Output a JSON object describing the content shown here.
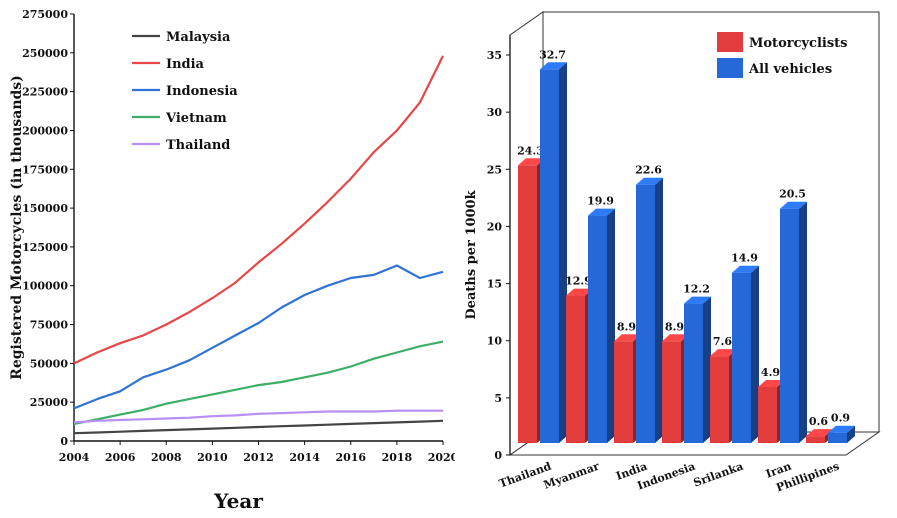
{
  "chart_data": [
    {
      "type": "line",
      "title": "",
      "xlabel": "Year",
      "ylabel": "Registered Motorcycles (in thousands)",
      "xlim": [
        2004,
        2020
      ],
      "ylim": [
        0,
        275000
      ],
      "x_ticks": [
        "2004",
        "2006",
        "2008",
        "2010",
        "2012",
        "2014",
        "2016",
        "2018",
        "2020"
      ],
      "y_ticks": [
        "0",
        "25000",
        "50000",
        "75000",
        "100000",
        "125000",
        "150000",
        "175000",
        "200000",
        "225000",
        "250000",
        "275000"
      ],
      "grid": false,
      "legend_position": "top-left",
      "series": [
        {
          "name": "Malaysia",
          "color": "#444444",
          "x": [
            2004,
            2005,
            2006,
            2007,
            2008,
            2009,
            2010,
            2011,
            2012,
            2013,
            2014,
            2015,
            2016,
            2017,
            2018,
            2019,
            2020
          ],
          "values": [
            5000,
            5500,
            6000,
            6500,
            7000,
            7500,
            8000,
            8500,
            9000,
            9500,
            10000,
            10500,
            11000,
            11500,
            12000,
            12500,
            13000
          ]
        },
        {
          "name": "India",
          "color": "#e8474a",
          "x": [
            2004,
            2005,
            2006,
            2007,
            2008,
            2009,
            2010,
            2011,
            2012,
            2013,
            2014,
            2015,
            2016,
            2017,
            2018,
            2019,
            2020
          ],
          "values": [
            50000,
            57000,
            63000,
            68000,
            75000,
            83000,
            92000,
            102000,
            115000,
            127000,
            140000,
            154000,
            169000,
            186000,
            200000,
            218000,
            248000
          ]
        },
        {
          "name": "Indonesia",
          "color": "#2f73d6",
          "x": [
            2004,
            2005,
            2006,
            2007,
            2008,
            2009,
            2010,
            2011,
            2012,
            2013,
            2014,
            2015,
            2016,
            2017,
            2018,
            2019,
            2020
          ],
          "values": [
            21000,
            27000,
            32000,
            41000,
            46000,
            52000,
            60000,
            68000,
            76000,
            86000,
            94000,
            100000,
            105000,
            107000,
            113000,
            105000,
            109000
          ]
        },
        {
          "name": "Vietnam",
          "color": "#3dae65",
          "x": [
            2004,
            2005,
            2006,
            2007,
            2008,
            2009,
            2010,
            2011,
            2012,
            2013,
            2014,
            2015,
            2016,
            2017,
            2018,
            2019,
            2020
          ],
          "values": [
            11000,
            14000,
            17000,
            20000,
            24000,
            27000,
            30000,
            33000,
            36000,
            38000,
            41000,
            44000,
            48000,
            53000,
            57000,
            61000,
            64000
          ]
        },
        {
          "name": "Thailand",
          "color": "#b98ef2",
          "x": [
            2004,
            2005,
            2006,
            2007,
            2008,
            2009,
            2010,
            2011,
            2012,
            2013,
            2014,
            2015,
            2016,
            2017,
            2018,
            2019,
            2020
          ],
          "values": [
            12000,
            13000,
            13500,
            14000,
            14500,
            15000,
            16000,
            16500,
            17500,
            18000,
            18500,
            19000,
            19000,
            19000,
            19500,
            19500,
            19500
          ]
        }
      ]
    },
    {
      "type": "bar",
      "title": "",
      "xlabel": "",
      "ylabel": "Deaths per 1000k",
      "ylim": [
        0,
        35
      ],
      "y_ticks": [
        "0",
        "5",
        "10",
        "15",
        "20",
        "25",
        "30",
        "35"
      ],
      "grid": false,
      "legend_position": "top-right",
      "categories": [
        "Thailand",
        "Myanmar",
        "India",
        "Indonesia",
        "Srilanka",
        "Iran",
        "Phillipines"
      ],
      "series": [
        {
          "name": "Motorcyclists",
          "color": "#e23c3c",
          "values": [
            24.3,
            12.9,
            8.9,
            8.9,
            7.6,
            4.9,
            0.6
          ],
          "labels": [
            "24.3",
            "12.9",
            "8.9",
            "8.9",
            "7.6",
            "4.9",
            "0.6"
          ]
        },
        {
          "name": "All vehicles",
          "color": "#2668d8",
          "values": [
            32.7,
            19.9,
            22.6,
            12.2,
            14.9,
            20.5,
            0.9
          ],
          "labels": [
            "32.7",
            "19.9",
            "22.6",
            "12.2",
            "14.9",
            "20.5",
            "0.9"
          ]
        }
      ]
    }
  ]
}
